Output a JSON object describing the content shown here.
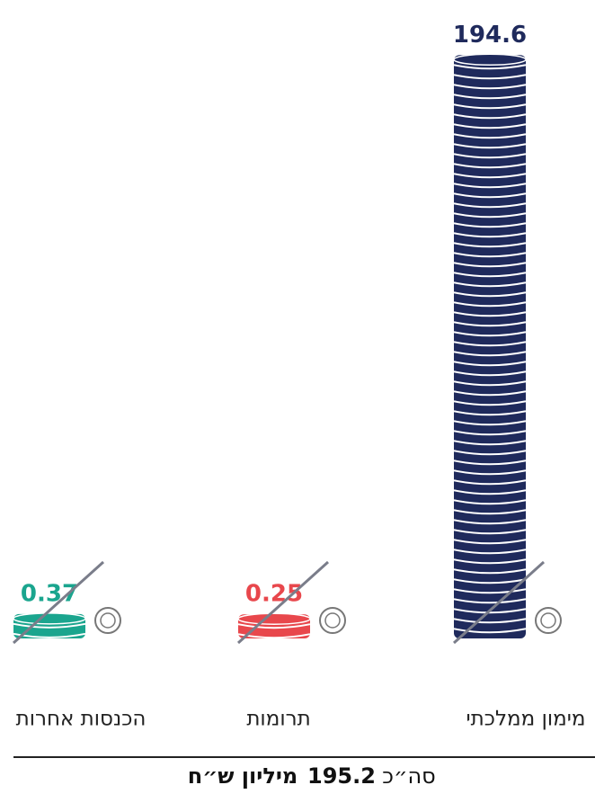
{
  "chart_data": {
    "type": "coin-stack",
    "categories": [
      "מימון ממלכתי",
      "תרומות",
      "הכנסות אחרות"
    ],
    "values": [
      194.6,
      0.25,
      0.37
    ],
    "colors": [
      "#1f2a5c",
      "#e8474c",
      "#1aa58e"
    ],
    "total_prefix": "סה״כ",
    "total_value": "195.2",
    "total_unit": "מיליון ש״ח"
  }
}
